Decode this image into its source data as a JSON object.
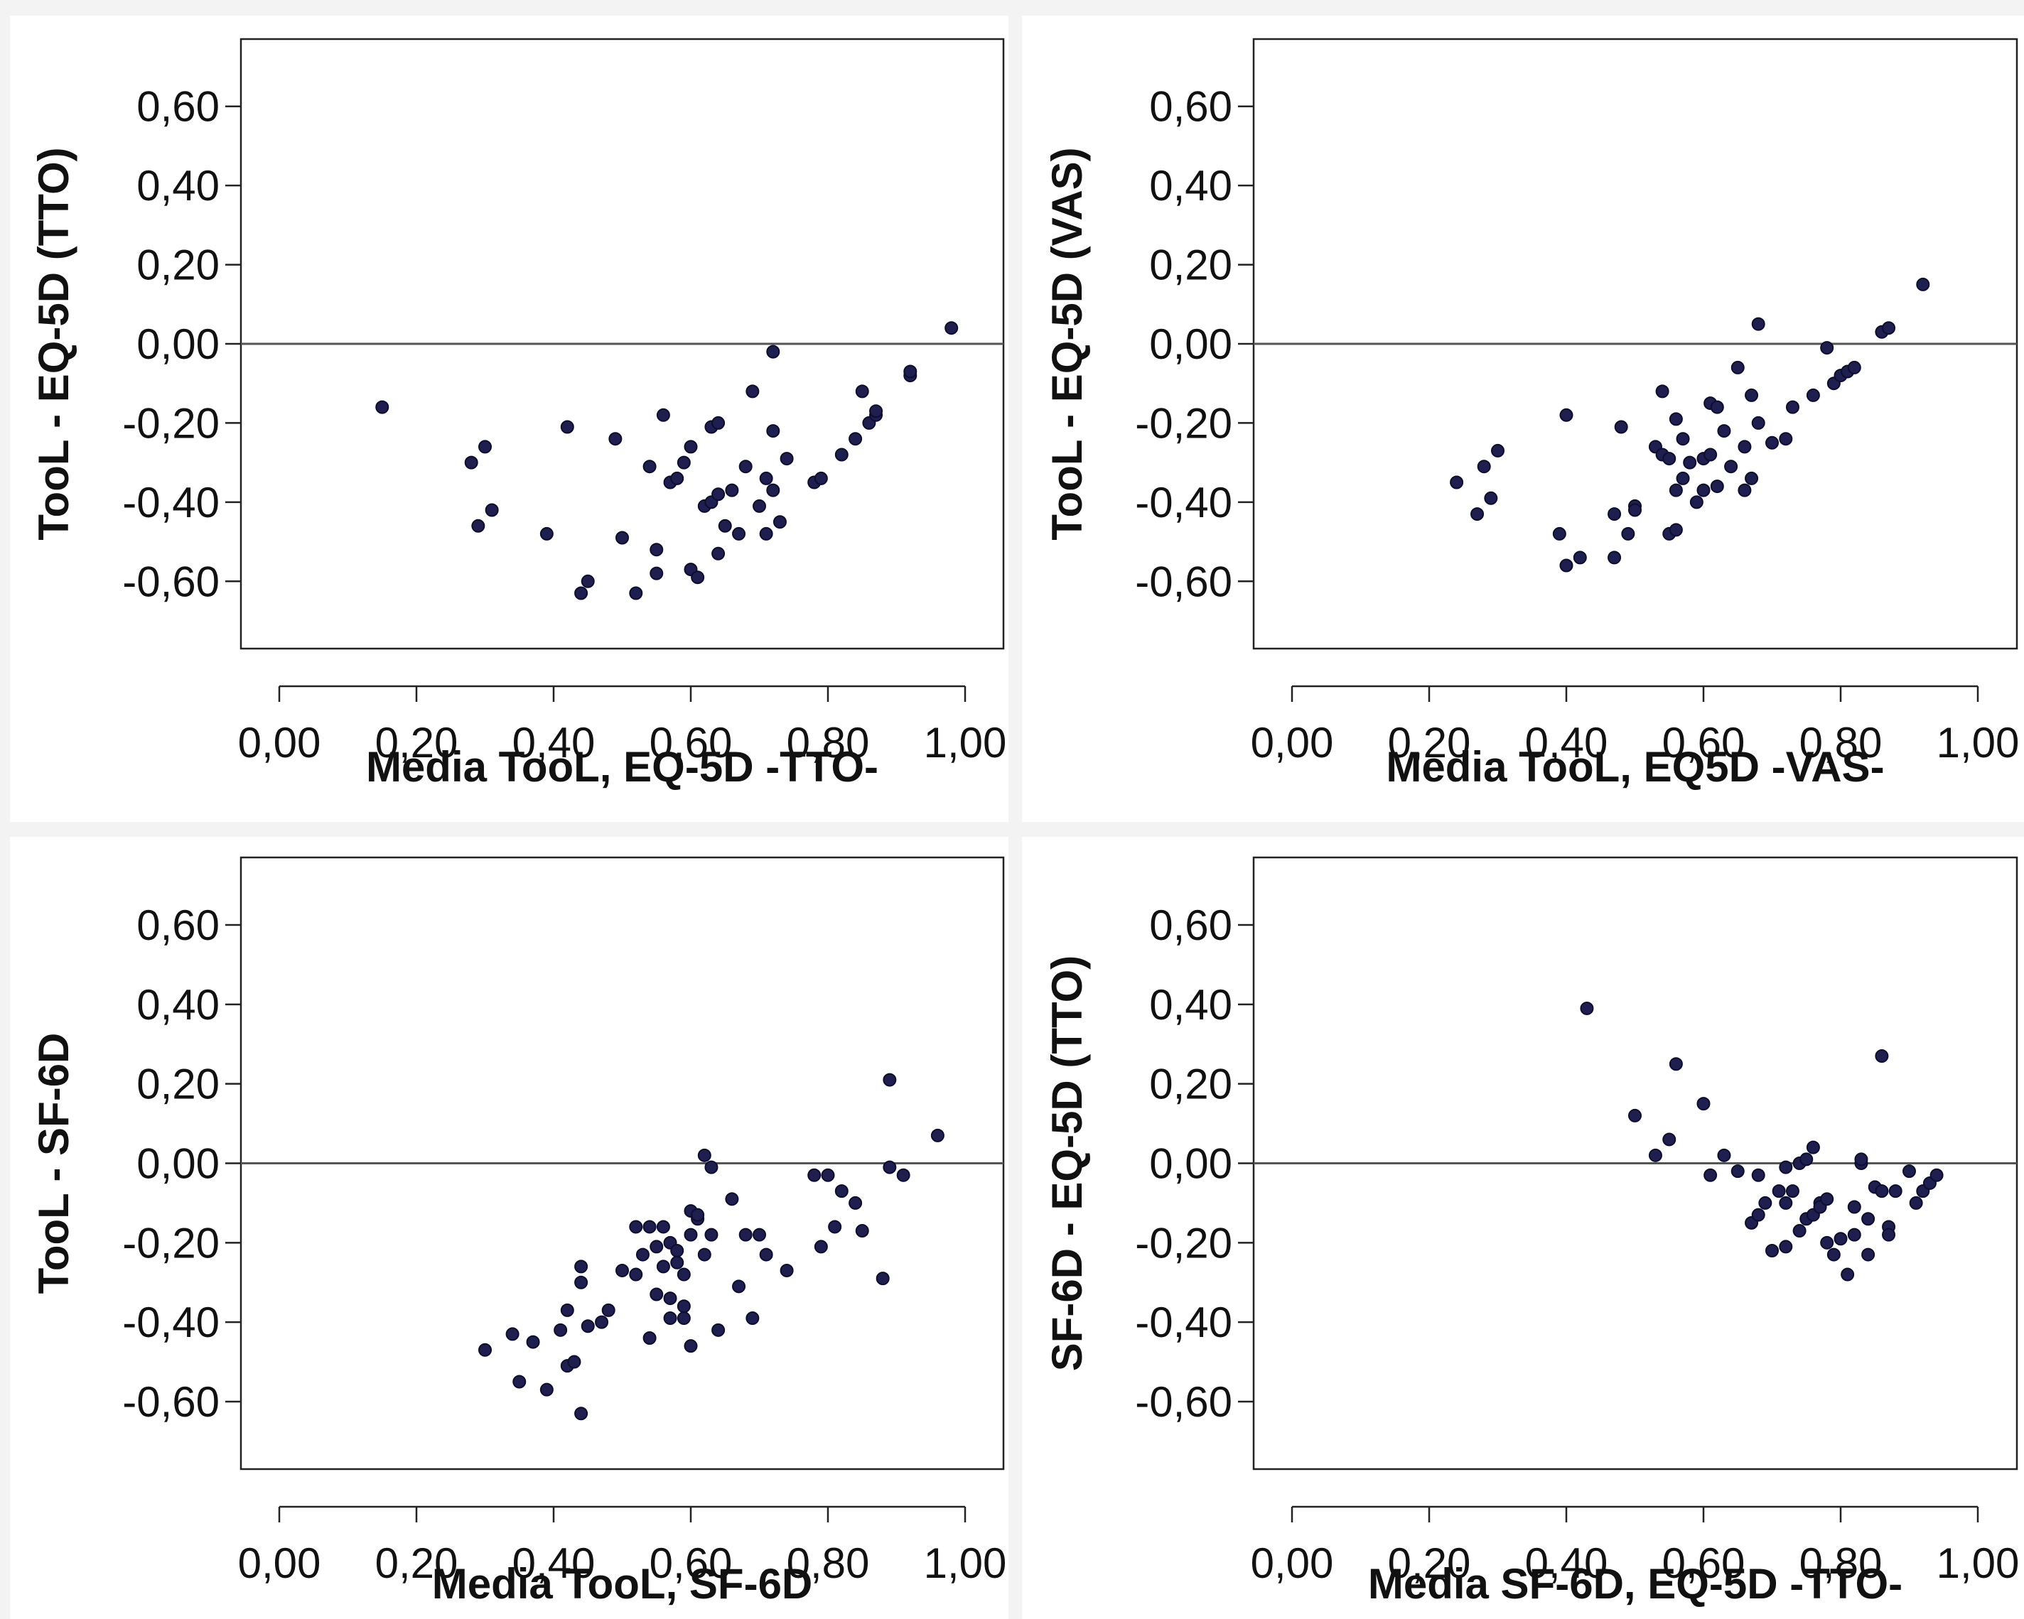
{
  "chart_data": [
    {
      "type": "scatter",
      "xlabel": "Media TooL, EQ-5D -TTO-",
      "ylabel": "TooL - EQ-5D (TTO)",
      "xlim": [
        -0.06,
        1.06
      ],
      "ylim": [
        -0.77,
        0.77
      ],
      "xticks": [
        "0,00",
        "0,20",
        "0,40",
        "0,60",
        "0,80",
        "1,00"
      ],
      "yticks": [
        "0,60",
        "0,40",
        "0,20",
        "0,00",
        "-0,20",
        "-0,40",
        "-0,60"
      ],
      "reference_line_y": 0,
      "grid": false,
      "x": [
        0.15,
        0.28,
        0.29,
        0.3,
        0.31,
        0.39,
        0.42,
        0.44,
        0.45,
        0.49,
        0.5,
        0.52,
        0.54,
        0.55,
        0.55,
        0.56,
        0.57,
        0.58,
        0.59,
        0.6,
        0.6,
        0.61,
        0.62,
        0.63,
        0.63,
        0.64,
        0.64,
        0.64,
        0.65,
        0.66,
        0.67,
        0.68,
        0.69,
        0.7,
        0.71,
        0.71,
        0.72,
        0.72,
        0.72,
        0.73,
        0.74,
        0.78,
        0.79,
        0.82,
        0.84,
        0.85,
        0.86,
        0.87,
        0.87,
        0.92,
        0.92,
        0.98
      ],
      "y": [
        -0.16,
        -0.3,
        -0.46,
        -0.26,
        -0.42,
        -0.48,
        -0.21,
        -0.63,
        -0.6,
        -0.24,
        -0.49,
        -0.63,
        -0.31,
        -0.52,
        -0.58,
        -0.18,
        -0.35,
        -0.34,
        -0.3,
        -0.26,
        -0.57,
        -0.59,
        -0.41,
        -0.4,
        -0.21,
        -0.38,
        -0.2,
        -0.53,
        -0.46,
        -0.37,
        -0.48,
        -0.31,
        -0.12,
        -0.41,
        -0.48,
        -0.34,
        -0.02,
        -0.22,
        -0.37,
        -0.45,
        -0.29,
        -0.35,
        -0.34,
        -0.28,
        -0.24,
        -0.12,
        -0.2,
        -0.18,
        -0.17,
        -0.08,
        -0.07,
        0.04
      ]
    },
    {
      "type": "scatter",
      "xlabel": "Media TooL, EQ5D -VAS-",
      "ylabel": "TooL - EQ-5D (VAS)",
      "xlim": [
        -0.06,
        1.06
      ],
      "ylim": [
        -0.77,
        0.77
      ],
      "xticks": [
        "0,00",
        "0,20",
        "0,40",
        "0,60",
        "0,80",
        "1,00"
      ],
      "yticks": [
        "0,60",
        "0,40",
        "0,20",
        "0,00",
        "-0,20",
        "-0,40",
        "-0,60"
      ],
      "reference_line_y": 0,
      "grid": false,
      "x": [
        0.24,
        0.27,
        0.28,
        0.29,
        0.3,
        0.39,
        0.4,
        0.4,
        0.42,
        0.47,
        0.47,
        0.48,
        0.49,
        0.5,
        0.5,
        0.53,
        0.54,
        0.54,
        0.55,
        0.55,
        0.56,
        0.56,
        0.56,
        0.57,
        0.57,
        0.58,
        0.59,
        0.6,
        0.6,
        0.61,
        0.61,
        0.62,
        0.62,
        0.63,
        0.64,
        0.65,
        0.66,
        0.66,
        0.67,
        0.67,
        0.68,
        0.68,
        0.7,
        0.72,
        0.73,
        0.76,
        0.78,
        0.79,
        0.8,
        0.81,
        0.82,
        0.86,
        0.87,
        0.92
      ],
      "y": [
        -0.35,
        -0.43,
        -0.31,
        -0.39,
        -0.27,
        -0.48,
        -0.56,
        -0.18,
        -0.54,
        -0.43,
        -0.54,
        -0.21,
        -0.48,
        -0.41,
        -0.42,
        -0.26,
        -0.12,
        -0.28,
        -0.29,
        -0.48,
        -0.47,
        -0.37,
        -0.19,
        -0.24,
        -0.34,
        -0.3,
        -0.4,
        -0.37,
        -0.29,
        -0.15,
        -0.28,
        -0.16,
        -0.36,
        -0.22,
        -0.31,
        -0.06,
        -0.37,
        -0.26,
        -0.13,
        -0.34,
        0.05,
        -0.2,
        -0.25,
        -0.24,
        -0.16,
        -0.13,
        -0.01,
        -0.1,
        -0.08,
        -0.07,
        -0.06,
        0.03,
        0.04,
        0.15
      ]
    },
    {
      "type": "scatter",
      "xlabel": "Media TooL, SF-6D",
      "ylabel": "TooL - SF-6D",
      "xlim": [
        -0.06,
        1.06
      ],
      "ylim": [
        -0.77,
        0.77
      ],
      "xticks": [
        "0,00",
        "0,20",
        "0,40",
        "0,60",
        "0,80",
        "1,00"
      ],
      "yticks": [
        "0,60",
        "0,40",
        "0,20",
        "0,00",
        "-0,20",
        "-0,40",
        "-0,60"
      ],
      "reference_line_y": 0,
      "grid": false,
      "x": [
        0.3,
        0.34,
        0.35,
        0.37,
        0.39,
        0.41,
        0.42,
        0.42,
        0.43,
        0.44,
        0.44,
        0.44,
        0.45,
        0.47,
        0.48,
        0.5,
        0.52,
        0.52,
        0.53,
        0.54,
        0.54,
        0.55,
        0.55,
        0.56,
        0.56,
        0.57,
        0.57,
        0.57,
        0.58,
        0.58,
        0.59,
        0.59,
        0.59,
        0.6,
        0.6,
        0.6,
        0.61,
        0.61,
        0.62,
        0.62,
        0.63,
        0.63,
        0.64,
        0.66,
        0.67,
        0.68,
        0.69,
        0.7,
        0.71,
        0.74,
        0.78,
        0.79,
        0.8,
        0.81,
        0.82,
        0.84,
        0.85,
        0.88,
        0.89,
        0.89,
        0.91,
        0.96
      ],
      "y": [
        -0.47,
        -0.43,
        -0.55,
        -0.45,
        -0.57,
        -0.42,
        -0.37,
        -0.51,
        -0.5,
        -0.3,
        -0.26,
        -0.63,
        -0.41,
        -0.4,
        -0.37,
        -0.27,
        -0.16,
        -0.28,
        -0.23,
        -0.16,
        -0.44,
        -0.21,
        -0.33,
        -0.16,
        -0.26,
        -0.2,
        -0.34,
        -0.39,
        -0.22,
        -0.25,
        -0.28,
        -0.39,
        -0.36,
        -0.12,
        -0.18,
        -0.46,
        -0.14,
        -0.13,
        0.02,
        -0.23,
        -0.01,
        -0.18,
        -0.42,
        -0.09,
        -0.31,
        -0.18,
        -0.39,
        -0.18,
        -0.23,
        -0.27,
        -0.03,
        -0.21,
        -0.03,
        -0.16,
        -0.07,
        -0.1,
        -0.17,
        -0.29,
        -0.01,
        0.21,
        -0.03,
        0.07
      ]
    },
    {
      "type": "scatter",
      "xlabel": "Media SF-6D, EQ-5D -TTO-",
      "ylabel": "SF-6D - EQ-5D (TTO)",
      "xlim": [
        -0.06,
        1.06
      ],
      "ylim": [
        -0.77,
        0.77
      ],
      "xticks": [
        "0,00",
        "0,20",
        "0,40",
        "0,60",
        "0,80",
        "1,00"
      ],
      "yticks": [
        "0,60",
        "0,40",
        "0,20",
        "0,00",
        "-0,20",
        "-0,40",
        "-0,60"
      ],
      "reference_line_y": 0,
      "grid": false,
      "x": [
        0.43,
        0.5,
        0.53,
        0.55,
        0.56,
        0.6,
        0.61,
        0.63,
        0.65,
        0.67,
        0.68,
        0.68,
        0.69,
        0.7,
        0.71,
        0.72,
        0.72,
        0.72,
        0.73,
        0.74,
        0.74,
        0.75,
        0.75,
        0.76,
        0.76,
        0.77,
        0.77,
        0.78,
        0.78,
        0.79,
        0.8,
        0.81,
        0.82,
        0.82,
        0.83,
        0.83,
        0.84,
        0.84,
        0.85,
        0.86,
        0.86,
        0.87,
        0.87,
        0.88,
        0.9,
        0.91,
        0.92,
        0.93,
        0.94
      ],
      "y": [
        0.39,
        0.12,
        0.02,
        0.06,
        0.25,
        0.15,
        -0.03,
        0.02,
        -0.02,
        -0.15,
        -0.03,
        -0.13,
        -0.1,
        -0.22,
        -0.07,
        -0.21,
        -0.1,
        -0.01,
        -0.07,
        -0.17,
        0.0,
        -0.14,
        0.01,
        -0.13,
        0.04,
        -0.1,
        -0.11,
        -0.09,
        -0.2,
        -0.23,
        -0.19,
        -0.28,
        -0.18,
        -0.11,
        0.0,
        0.01,
        -0.14,
        -0.23,
        -0.06,
        0.27,
        -0.07,
        -0.16,
        -0.18,
        -0.07,
        -0.02,
        -0.1,
        -0.07,
        -0.05,
        -0.03
      ]
    }
  ]
}
